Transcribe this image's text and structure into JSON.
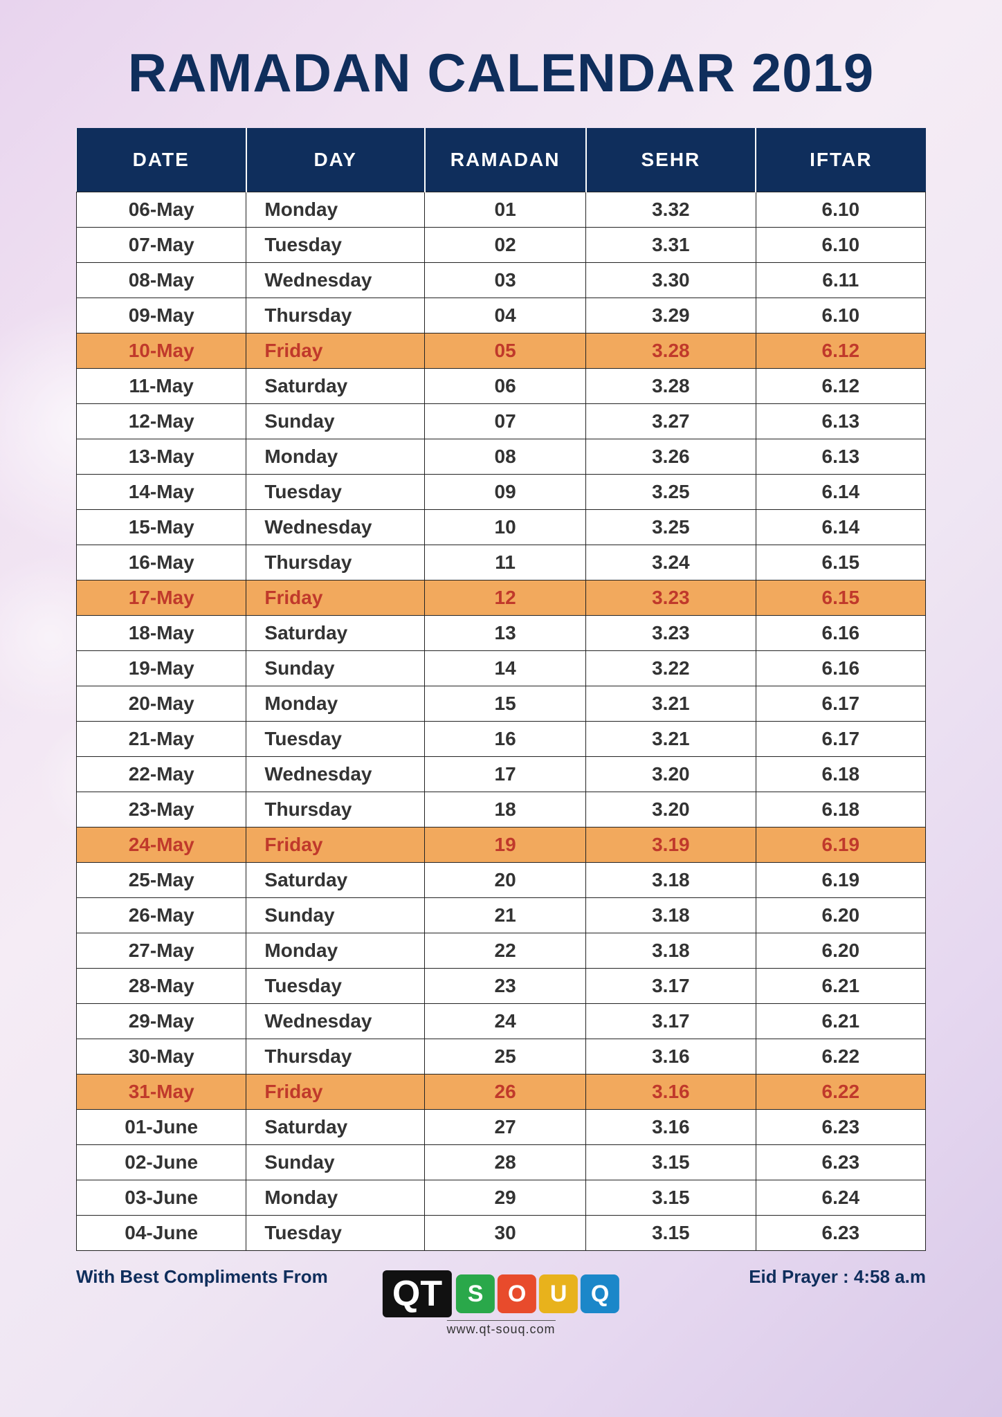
{
  "title": "RAMADAN CALENDAR 2019",
  "colors": {
    "header_bg": "#0f2e5c",
    "header_text": "#ffffff",
    "cell_text": "#333333",
    "friday_bg": "#f2a95d",
    "friday_text": "#c0392b",
    "border": "#222222",
    "page_bg_gradient_start": "#e8d4ee",
    "page_bg_gradient_end": "#d8c8e8"
  },
  "typography": {
    "title_fontsize": 78,
    "title_weight": 900,
    "header_fontsize": 28,
    "cell_fontsize": 28,
    "footer_fontsize": 26
  },
  "table": {
    "type": "table",
    "columns": [
      "DATE",
      "DAY",
      "RAMADAN",
      "SEHR",
      "IFTAR"
    ],
    "column_widths_pct": [
      20,
      21,
      19,
      20,
      20
    ],
    "day_alignment": "left",
    "other_alignment": "center",
    "rows": [
      {
        "date": "06-May",
        "day": "Monday",
        "ramadan": "01",
        "sehr": "3.32",
        "iftar": "6.10",
        "friday": false
      },
      {
        "date": "07-May",
        "day": "Tuesday",
        "ramadan": "02",
        "sehr": "3.31",
        "iftar": "6.10",
        "friday": false
      },
      {
        "date": "08-May",
        "day": "Wednesday",
        "ramadan": "03",
        "sehr": "3.30",
        "iftar": "6.11",
        "friday": false
      },
      {
        "date": "09-May",
        "day": "Thursday",
        "ramadan": "04",
        "sehr": "3.29",
        "iftar": "6.10",
        "friday": false
      },
      {
        "date": "10-May",
        "day": "Friday",
        "ramadan": "05",
        "sehr": "3.28",
        "iftar": "6.12",
        "friday": true
      },
      {
        "date": "11-May",
        "day": "Saturday",
        "ramadan": "06",
        "sehr": "3.28",
        "iftar": "6.12",
        "friday": false
      },
      {
        "date": "12-May",
        "day": "Sunday",
        "ramadan": "07",
        "sehr": "3.27",
        "iftar": "6.13",
        "friday": false
      },
      {
        "date": "13-May",
        "day": "Monday",
        "ramadan": "08",
        "sehr": "3.26",
        "iftar": "6.13",
        "friday": false
      },
      {
        "date": "14-May",
        "day": "Tuesday",
        "ramadan": "09",
        "sehr": "3.25",
        "iftar": "6.14",
        "friday": false
      },
      {
        "date": "15-May",
        "day": "Wednesday",
        "ramadan": "10",
        "sehr": "3.25",
        "iftar": "6.14",
        "friday": false
      },
      {
        "date": "16-May",
        "day": "Thursday",
        "ramadan": "11",
        "sehr": "3.24",
        "iftar": "6.15",
        "friday": false
      },
      {
        "date": "17-May",
        "day": "Friday",
        "ramadan": "12",
        "sehr": "3.23",
        "iftar": "6.15",
        "friday": true
      },
      {
        "date": "18-May",
        "day": "Saturday",
        "ramadan": "13",
        "sehr": "3.23",
        "iftar": "6.16",
        "friday": false
      },
      {
        "date": "19-May",
        "day": "Sunday",
        "ramadan": "14",
        "sehr": "3.22",
        "iftar": "6.16",
        "friday": false
      },
      {
        "date": "20-May",
        "day": "Monday",
        "ramadan": "15",
        "sehr": "3.21",
        "iftar": "6.17",
        "friday": false
      },
      {
        "date": "21-May",
        "day": "Tuesday",
        "ramadan": "16",
        "sehr": "3.21",
        "iftar": "6.17",
        "friday": false
      },
      {
        "date": "22-May",
        "day": "Wednesday",
        "ramadan": "17",
        "sehr": "3.20",
        "iftar": "6.18",
        "friday": false
      },
      {
        "date": "23-May",
        "day": "Thursday",
        "ramadan": "18",
        "sehr": "3.20",
        "iftar": "6.18",
        "friday": false
      },
      {
        "date": "24-May",
        "day": "Friday",
        "ramadan": "19",
        "sehr": "3.19",
        "iftar": "6.19",
        "friday": true
      },
      {
        "date": "25-May",
        "day": "Saturday",
        "ramadan": "20",
        "sehr": "3.18",
        "iftar": "6.19",
        "friday": false
      },
      {
        "date": "26-May",
        "day": "Sunday",
        "ramadan": "21",
        "sehr": "3.18",
        "iftar": "6.20",
        "friday": false
      },
      {
        "date": "27-May",
        "day": "Monday",
        "ramadan": "22",
        "sehr": "3.18",
        "iftar": "6.20",
        "friday": false
      },
      {
        "date": "28-May",
        "day": "Tuesday",
        "ramadan": "23",
        "sehr": "3.17",
        "iftar": "6.21",
        "friday": false
      },
      {
        "date": "29-May",
        "day": "Wednesday",
        "ramadan": "24",
        "sehr": "3.17",
        "iftar": "6.21",
        "friday": false
      },
      {
        "date": "30-May",
        "day": "Thursday",
        "ramadan": "25",
        "sehr": "3.16",
        "iftar": "6.22",
        "friday": false
      },
      {
        "date": "31-May",
        "day": "Friday",
        "ramadan": "26",
        "sehr": "3.16",
        "iftar": "6.22",
        "friday": true
      },
      {
        "date": "01-June",
        "day": "Saturday",
        "ramadan": "27",
        "sehr": "3.16",
        "iftar": "6.23",
        "friday": false
      },
      {
        "date": "02-June",
        "day": "Sunday",
        "ramadan": "28",
        "sehr": "3.15",
        "iftar": "6.23",
        "friday": false
      },
      {
        "date": "03-June",
        "day": "Monday",
        "ramadan": "29",
        "sehr": "3.15",
        "iftar": "6.24",
        "friday": false
      },
      {
        "date": "04-June",
        "day": "Tuesday",
        "ramadan": "30",
        "sehr": "3.15",
        "iftar": "6.23",
        "friday": false
      }
    ]
  },
  "footer": {
    "compliments": "With Best Compliments From",
    "eid_prayer": "Eid Prayer : 4:58 a.m",
    "logo_qt": "QT",
    "logo_letters": [
      {
        "char": "S",
        "color": "#2aa84a"
      },
      {
        "char": "O",
        "color": "#e84b2c"
      },
      {
        "char": "U",
        "color": "#e8b21c"
      },
      {
        "char": "Q",
        "color": "#1b87c9"
      }
    ],
    "website": "www.qt-souq.com"
  }
}
